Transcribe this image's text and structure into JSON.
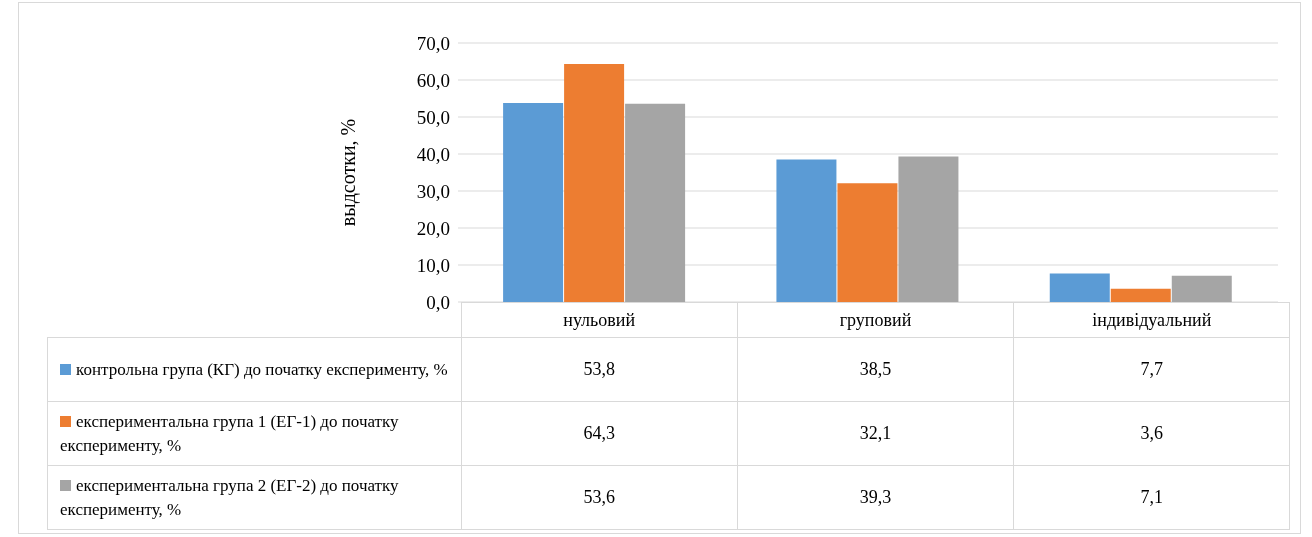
{
  "chart_data": {
    "type": "bar",
    "ylabel": "выдсотки, %",
    "categories": [
      "нульовий",
      "груповий",
      "індивідуальний"
    ],
    "series": [
      {
        "name": "контрольна група (КГ) до початку експерименту, %",
        "color": "#5b9bd5",
        "values": [
          53.8,
          38.5,
          7.7
        ],
        "value_labels": [
          "53,8",
          "38,5",
          "7,7"
        ]
      },
      {
        "name": "експериментальна група 1 (ЕГ-1) до початку експерименту, %",
        "color": "#ed7d31",
        "values": [
          64.3,
          32.1,
          3.6
        ],
        "value_labels": [
          "64,3",
          "32,1",
          "3,6"
        ]
      },
      {
        "name": "експериментальна група 2 (ЕГ-2) до початку експерименту, %",
        "color": "#a5a5a5",
        "values": [
          53.6,
          39.3,
          7.1
        ],
        "value_labels": [
          "53,6",
          "39,3",
          "7,1"
        ]
      }
    ],
    "ylim": [
      0,
      70
    ],
    "yticks": [
      {
        "value": 0,
        "label": "0,0"
      },
      {
        "value": 10,
        "label": "10,0"
      },
      {
        "value": 20,
        "label": "20,0"
      },
      {
        "value": 30,
        "label": "30,0"
      },
      {
        "value": 40,
        "label": "40,0"
      },
      {
        "value": 50,
        "label": "50,0"
      },
      {
        "value": 60,
        "label": "60,0"
      },
      {
        "value": 70,
        "label": "70,0"
      }
    ],
    "grid": "y",
    "legend": "bottom"
  }
}
